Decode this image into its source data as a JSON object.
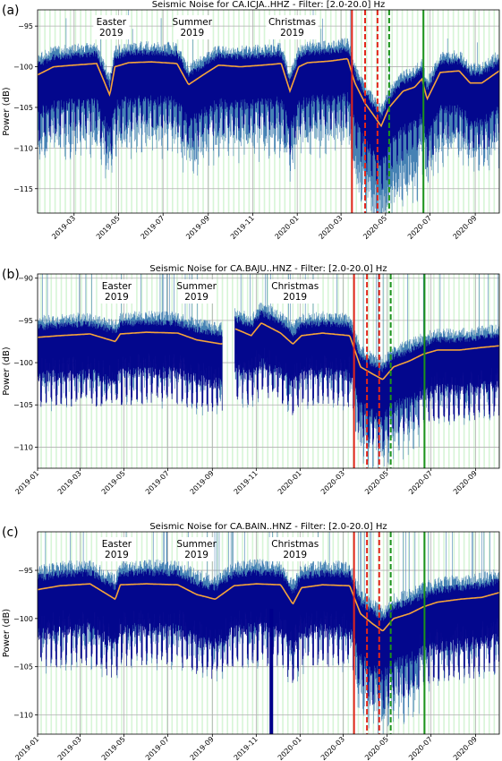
{
  "colors": {
    "noise_light": "#4682b4",
    "noise_dark": "#00008b",
    "median_line": "#f5a33a",
    "weekend_band": "#d7f5d7",
    "red_line": "#e3261b",
    "green_line": "#1c931c",
    "grid": "#b0b0b0"
  },
  "chart_data": [
    {
      "panel": "(a)",
      "type": "line",
      "title": "Seismic Noise for CA.ICJA..HHZ - Filter: [2.0-20.0] Hz",
      "ylabel": "Power (dB)",
      "xlabel": "",
      "xlim": [
        "2019-01-10",
        "2020-10-04"
      ],
      "ylim": [
        -118,
        -93
      ],
      "yticks": [
        -95,
        -100,
        -105,
        -110,
        -115
      ],
      "xticks": [
        "2019-03",
        "2019-05",
        "2019-07",
        "2019-09",
        "2019-11",
        "2020-01",
        "2020-03",
        "2020-05",
        "2020-07",
        "2020-09"
      ],
      "annotations": [
        {
          "lines": [
            "Easter",
            "2019"
          ],
          "x": "2019-04-21"
        },
        {
          "lines": [
            "Summer",
            "2019"
          ],
          "x": "2019-08-10"
        },
        {
          "lines": [
            "Christmas",
            "2019"
          ],
          "x": "2019-12-25"
        }
      ],
      "vlines": [
        {
          "x": "2020-03-16",
          "color": "red",
          "style": "solid"
        },
        {
          "x": "2020-04-03",
          "color": "red",
          "style": "dashed"
        },
        {
          "x": "2020-04-20",
          "color": "red",
          "style": "dashed"
        },
        {
          "x": "2020-05-06",
          "color": "green",
          "style": "dashed"
        },
        {
          "x": "2020-06-22",
          "color": "green",
          "style": "solid"
        }
      ],
      "baseline": {
        "pre": -99.5,
        "lockdown_min": -107.5,
        "post": -101
      },
      "series": [
        {
          "x": [
            "2019-01-10",
            "2019-02-01",
            "2019-03-01",
            "2019-04-01",
            "2019-04-19",
            "2019-04-26",
            "2019-05-15",
            "2019-06-15",
            "2019-07-20",
            "2019-08-05",
            "2019-08-25",
            "2019-09-15",
            "2019-10-15",
            "2019-11-15",
            "2019-12-10",
            "2019-12-22",
            "2020-01-03",
            "2020-01-15",
            "2020-02-15",
            "2020-03-10",
            "2020-03-20",
            "2020-04-03",
            "2020-04-15",
            "2020-04-25",
            "2020-05-06",
            "2020-05-25",
            "2020-06-10",
            "2020-06-20",
            "2020-06-27",
            "2020-07-15",
            "2020-08-10",
            "2020-08-25",
            "2020-09-10",
            "2020-10-04"
          ],
          "y": [
            -101,
            -100,
            -99.8,
            -99.6,
            -103.5,
            -100.0,
            -99.5,
            -99.4,
            -99.6,
            -102.2,
            -101.0,
            -99.8,
            -100.0,
            -99.8,
            -99.6,
            -103.0,
            -100.0,
            -99.5,
            -99.3,
            -99.0,
            -102.0,
            -104.5,
            -106.0,
            -107.3,
            -105.0,
            -103.0,
            -102.5,
            -101.5,
            -104.0,
            -100.7,
            -100.5,
            -102.0,
            -102.0,
            -100.5
          ]
        }
      ]
    },
    {
      "panel": "(b)",
      "type": "line",
      "title": "Seismic Noise for CA.BAJU..HNZ - Filter: [2.0-20.0] Hz",
      "ylabel": "Power (dB)",
      "xlabel": "",
      "xlim": [
        "2019-01-01",
        "2020-10-04"
      ],
      "ylim": [
        -112.5,
        -89.5
      ],
      "yticks": [
        -90,
        -95,
        -100,
        -105,
        -110
      ],
      "xticks": [
        "2019-01",
        "2019-03",
        "2019-05",
        "2019-07",
        "2019-09",
        "2019-11",
        "2020-01",
        "2020-03",
        "2020-05",
        "2020-07",
        "2020-09"
      ],
      "annotations": [
        {
          "lines": [
            "Easter",
            "2019"
          ],
          "x": "2019-04-21"
        },
        {
          "lines": [
            "Summer",
            "2019"
          ],
          "x": "2019-08-10"
        },
        {
          "lines": [
            "Christmas",
            "2019"
          ],
          "x": "2019-12-25"
        }
      ],
      "vlines": [
        {
          "x": "2020-03-16",
          "color": "red",
          "style": "solid"
        },
        {
          "x": "2020-04-03",
          "color": "red",
          "style": "dashed"
        },
        {
          "x": "2020-04-20",
          "color": "red",
          "style": "dashed"
        },
        {
          "x": "2020-05-06",
          "color": "green",
          "style": "dashed"
        },
        {
          "x": "2020-06-22",
          "color": "green",
          "style": "solid"
        }
      ],
      "gaps": [
        [
          "2019-09-15",
          "2019-10-02"
        ]
      ],
      "baseline": {
        "pre": -96.7,
        "lockdown_min": -102,
        "post": -98.5
      },
      "series": [
        {
          "x": [
            "2019-01-01",
            "2019-02-01",
            "2019-03-15",
            "2019-04-19",
            "2019-04-26",
            "2019-06-01",
            "2019-07-15",
            "2019-08-10",
            "2019-09-14",
            "2019-10-03",
            "2019-10-25",
            "2019-11-08",
            "2019-12-05",
            "2019-12-22",
            "2020-01-03",
            "2020-02-01",
            "2020-03-10",
            "2020-03-25",
            "2020-04-10",
            "2020-04-25",
            "2020-05-10",
            "2020-06-01",
            "2020-06-20",
            "2020-07-10",
            "2020-08-10",
            "2020-09-10",
            "2020-10-04"
          ],
          "y": [
            -97,
            -96.8,
            -96.6,
            -97.5,
            -96.6,
            -96.4,
            -96.5,
            -97.3,
            -97.8,
            -96.0,
            -96.8,
            -95.3,
            -96.5,
            -97.8,
            -96.8,
            -96.5,
            -96.8,
            -100.5,
            -101.3,
            -102.0,
            -100.5,
            -99.8,
            -99.0,
            -98.5,
            -98.5,
            -98.2,
            -98.0
          ]
        }
      ]
    },
    {
      "panel": "(c)",
      "type": "line",
      "title": "Seismic Noise for CA.BAIN..HNZ - Filter: [2.0-20.0] Hz",
      "ylabel": "Power (dB)",
      "xlabel": "",
      "xlim": [
        "2019-01-01",
        "2020-10-04"
      ],
      "ylim": [
        -112,
        -91
      ],
      "yticks": [
        -95,
        -100,
        -105,
        -110
      ],
      "xticks": [
        "2019-01",
        "2019-03",
        "2019-05",
        "2019-07",
        "2019-09",
        "2019-11",
        "2020-01",
        "2020-03",
        "2020-05",
        "2020-07",
        "2020-09"
      ],
      "annotations": [
        {
          "lines": [
            "Easter",
            "2019"
          ],
          "x": "2019-04-21"
        },
        {
          "lines": [
            "Summer",
            "2019"
          ],
          "x": "2019-08-10"
        },
        {
          "lines": [
            "Christmas",
            "2019"
          ],
          "x": "2019-12-25"
        }
      ],
      "vlines": [
        {
          "x": "2020-03-16",
          "color": "red",
          "style": "solid"
        },
        {
          "x": "2020-04-03",
          "color": "red",
          "style": "dashed"
        },
        {
          "x": "2020-04-20",
          "color": "red",
          "style": "dashed"
        },
        {
          "x": "2020-05-06",
          "color": "green",
          "style": "dashed"
        },
        {
          "x": "2020-06-22",
          "color": "green",
          "style": "solid"
        }
      ],
      "spikes": [
        {
          "x": "2019-11-22",
          "y0": -112,
          "y1": -99
        }
      ],
      "baseline": {
        "pre": -96.4,
        "lockdown_min": -101.5,
        "post": -98
      },
      "series": [
        {
          "x": [
            "2019-01-01",
            "2019-02-01",
            "2019-03-15",
            "2019-04-19",
            "2019-04-26",
            "2019-06-01",
            "2019-07-15",
            "2019-08-10",
            "2019-09-05",
            "2019-10-01",
            "2019-11-01",
            "2019-12-05",
            "2019-12-22",
            "2020-01-03",
            "2020-02-01",
            "2020-03-10",
            "2020-03-25",
            "2020-04-10",
            "2020-04-25",
            "2020-05-10",
            "2020-06-01",
            "2020-06-20",
            "2020-07-10",
            "2020-08-10",
            "2020-09-10",
            "2020-10-04"
          ],
          "y": [
            -97,
            -96.6,
            -96.4,
            -98.0,
            -96.5,
            -96.4,
            -96.5,
            -97.5,
            -98.0,
            -96.6,
            -96.4,
            -96.5,
            -98.5,
            -96.8,
            -96.5,
            -96.6,
            -99.5,
            -100.5,
            -101.3,
            -100.0,
            -99.5,
            -98.8,
            -98.3,
            -98.0,
            -97.8,
            -97.3
          ]
        }
      ]
    }
  ]
}
